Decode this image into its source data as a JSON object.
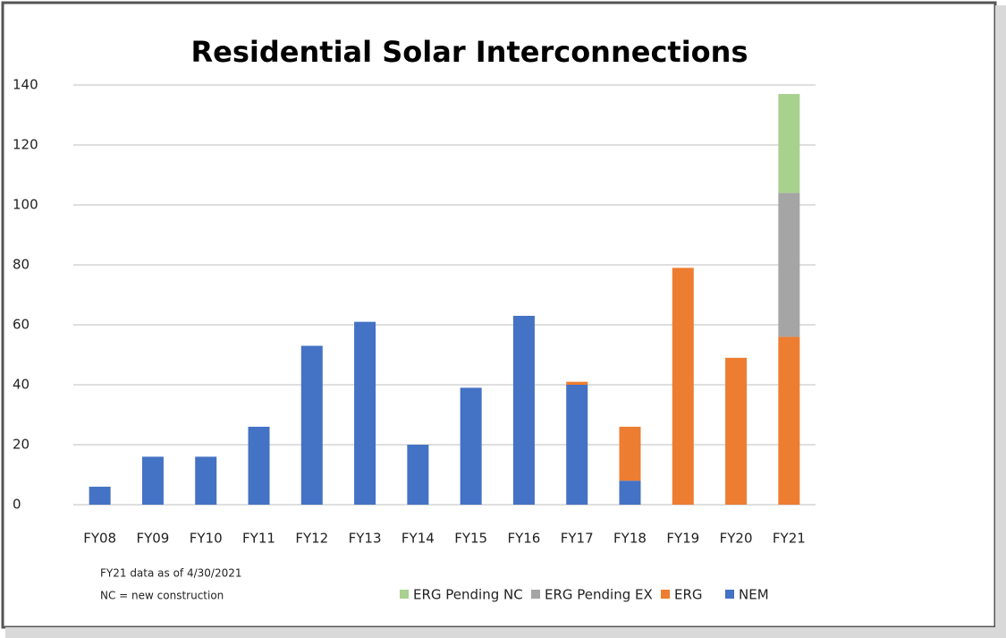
{
  "chart_data": {
    "type": "stacked_bar",
    "title": "Residential Solar Interconnections",
    "annotations": [
      "FY21 data as of 4/30/2021",
      "NC = new construction"
    ],
    "categories": [
      "FY08",
      "FY09",
      "FY10",
      "FY11",
      "FY12",
      "FY13",
      "FY14",
      "FY15",
      "FY16",
      "FY17",
      "FY18",
      "FY19",
      "FY20",
      "FY21"
    ],
    "series": [
      {
        "name": "NEM",
        "color": "#4472c4",
        "values": [
          6,
          16,
          16,
          26,
          53,
          61,
          20,
          39,
          63,
          40,
          8,
          0,
          0,
          0
        ]
      },
      {
        "name": "ERG",
        "color": "#ed7d31",
        "values": [
          0,
          0,
          0,
          0,
          0,
          0,
          0,
          0,
          0,
          1,
          18,
          79,
          49,
          56
        ]
      },
      {
        "name": "ERG Pending EX",
        "color": "#a5a5a5",
        "values": [
          0,
          0,
          0,
          0,
          0,
          0,
          0,
          0,
          0,
          0,
          0,
          0,
          0,
          48
        ]
      },
      {
        "name": "ERG Pending NC",
        "color": "#a9d18e",
        "values": [
          0,
          0,
          0,
          0,
          0,
          0,
          0,
          0,
          0,
          0,
          0,
          0,
          0,
          33
        ]
      }
    ],
    "ylim": [
      0,
      140
    ],
    "yticks": [
      0,
      20,
      40,
      60,
      80,
      100,
      120,
      140
    ],
    "grid": true,
    "legend": "bottom-right"
  }
}
